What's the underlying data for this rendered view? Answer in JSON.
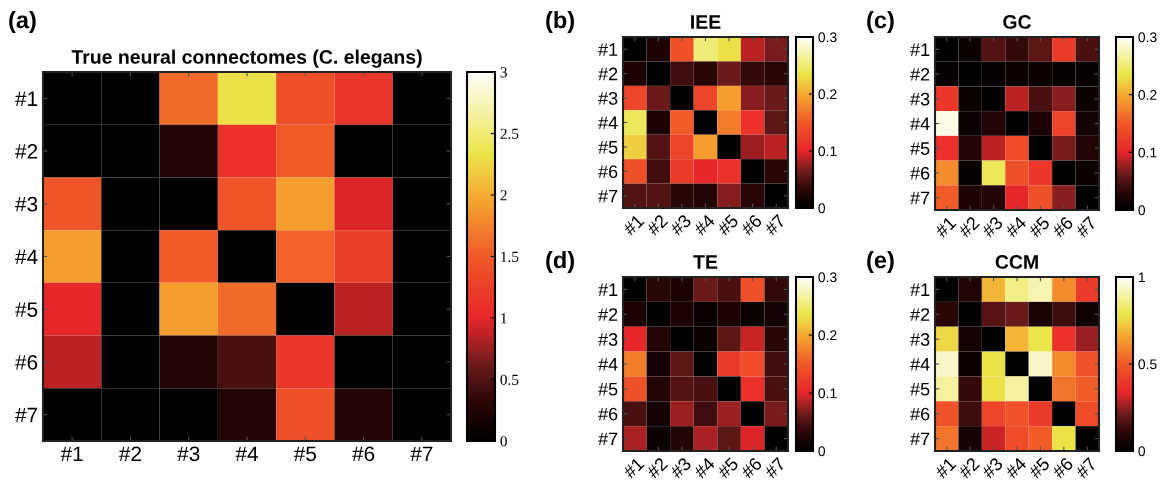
{
  "chart_data": [
    {
      "type": "heatmap",
      "title": "True neural connectomes (C. elegans)",
      "annotations": [
        "(a)"
      ],
      "categories": [
        "#1",
        "#2",
        "#3",
        "#4",
        "#5",
        "#6",
        "#7"
      ],
      "y_categories": [
        "#1",
        "#2",
        "#3",
        "#4",
        "#5",
        "#6",
        "#7"
      ],
      "cells": [
        [
          0,
          0,
          1.6,
          2.3,
          1.4,
          1.15,
          0
        ],
        [
          0,
          0,
          0.25,
          1.1,
          1.5,
          0,
          0
        ],
        [
          1.45,
          0,
          0,
          1.45,
          1.9,
          0.95,
          0
        ],
        [
          1.9,
          0,
          1.5,
          0,
          1.55,
          1.25,
          0
        ],
        [
          1.0,
          0,
          1.9,
          1.6,
          0,
          0.85,
          0
        ],
        [
          0.85,
          0,
          0.25,
          0.45,
          1.15,
          0,
          0
        ],
        [
          0,
          0,
          0,
          0.25,
          1.4,
          0.25,
          0
        ]
      ],
      "clim": [
        0,
        3
      ],
      "cticks": [
        0,
        0.5,
        1,
        1.5,
        2,
        2.5,
        3
      ]
    },
    {
      "type": "heatmap",
      "title": "IEE",
      "annotations": [
        "(b)"
      ],
      "categories": [
        "#1",
        "#2",
        "#3",
        "#4",
        "#5",
        "#6",
        "#7"
      ],
      "y_categories": [
        "#1",
        "#2",
        "#3",
        "#4",
        "#5",
        "#6",
        "#7"
      ],
      "cells": [
        [
          0,
          0.02,
          0.14,
          0.25,
          0.23,
          0.085,
          0.065
        ],
        [
          0.02,
          0,
          0.04,
          0.03,
          0.06,
          0.035,
          0.03
        ],
        [
          0.13,
          0.06,
          0,
          0.13,
          0.19,
          0.07,
          0.06
        ],
        [
          0.24,
          0.02,
          0.15,
          0,
          0.17,
          0.11,
          0.055
        ],
        [
          0.22,
          0.05,
          0.13,
          0.19,
          0,
          0.075,
          0.085
        ],
        [
          0.14,
          0.04,
          0.12,
          0.1,
          0.11,
          0,
          0.03
        ],
        [
          0.05,
          0.05,
          0.03,
          0.025,
          0.07,
          0.03,
          0
        ]
      ],
      "clim": [
        0,
        0.3
      ],
      "cticks": [
        0,
        0.1,
        0.2,
        0.3
      ]
    },
    {
      "type": "heatmap",
      "title": "GC",
      "annotations": [
        "(c)"
      ],
      "categories": [
        "#1",
        "#2",
        "#3",
        "#4",
        "#5",
        "#6",
        "#7"
      ],
      "y_categories": [
        "#1",
        "#2",
        "#3",
        "#4",
        "#5",
        "#6",
        "#7"
      ],
      "cells": [
        [
          0,
          0.01,
          0.05,
          0.035,
          0.055,
          0.12,
          0.045
        ],
        [
          0.005,
          0,
          0.005,
          0.008,
          0.01,
          0.005,
          0.005
        ],
        [
          0.115,
          0.008,
          0,
          0.085,
          0.045,
          0.07,
          0.01
        ],
        [
          0.29,
          0.01,
          0.025,
          0,
          0.02,
          0.13,
          0.015
        ],
        [
          0.11,
          0.025,
          0.085,
          0.135,
          0,
          0.065,
          0.025
        ],
        [
          0.18,
          0.005,
          0.24,
          0.14,
          0.115,
          0,
          0.01
        ],
        [
          0.15,
          0.02,
          0.025,
          0.1,
          0.14,
          0.07,
          0
        ]
      ],
      "clim": [
        0,
        0.3
      ],
      "cticks": [
        0,
        0.1,
        0.2,
        0.3
      ]
    },
    {
      "type": "heatmap",
      "title": "TE",
      "annotations": [
        "(d)"
      ],
      "categories": [
        "#1",
        "#2",
        "#3",
        "#4",
        "#5",
        "#6",
        "#7"
      ],
      "y_categories": [
        "#1",
        "#2",
        "#3",
        "#4",
        "#5",
        "#6",
        "#7"
      ],
      "cells": [
        [
          0,
          0.03,
          0.02,
          0.06,
          0.045,
          0.14,
          0.035
        ],
        [
          0.02,
          0,
          0.02,
          0.008,
          0.02,
          0.008,
          0.015
        ],
        [
          0.1,
          0.025,
          0,
          0.01,
          0.055,
          0.09,
          0.03
        ],
        [
          0.17,
          0.015,
          0.055,
          0,
          0.12,
          0.135,
          0.04
        ],
        [
          0.14,
          0.025,
          0.05,
          0.045,
          0,
          0.11,
          0.045
        ],
        [
          0.045,
          0.015,
          0.075,
          0.04,
          0.075,
          0,
          0.065
        ],
        [
          0.08,
          0.01,
          0.025,
          0.08,
          0.055,
          0.095,
          0
        ]
      ],
      "clim": [
        0,
        0.3
      ],
      "cticks": [
        0,
        0.1,
        0.2,
        0.3
      ]
    },
    {
      "type": "heatmap",
      "title": "CCM",
      "annotations": [
        "(e)"
      ],
      "categories": [
        "#1",
        "#2",
        "#3",
        "#4",
        "#5",
        "#6",
        "#7"
      ],
      "y_categories": [
        "#1",
        "#2",
        "#3",
        "#4",
        "#5",
        "#6",
        "#7"
      ],
      "cells": [
        [
          0,
          0.08,
          0.68,
          0.85,
          0.9,
          0.6,
          0.4
        ],
        [
          0.1,
          0,
          0.17,
          0.2,
          0.06,
          0.13,
          0.04
        ],
        [
          0.75,
          0.05,
          0,
          0.68,
          0.78,
          0.37,
          0.25
        ],
        [
          0.93,
          0.03,
          0.77,
          0,
          0.93,
          0.6,
          0.47
        ],
        [
          0.88,
          0.12,
          0.77,
          0.88,
          0,
          0.55,
          0.5
        ],
        [
          0.47,
          0.13,
          0.43,
          0.47,
          0.4,
          0,
          0.45
        ],
        [
          0.55,
          0.05,
          0.3,
          0.45,
          0.5,
          0.77,
          0
        ]
      ],
      "clim": [
        0,
        1
      ],
      "cticks": [
        0,
        0.5,
        1
      ]
    }
  ]
}
